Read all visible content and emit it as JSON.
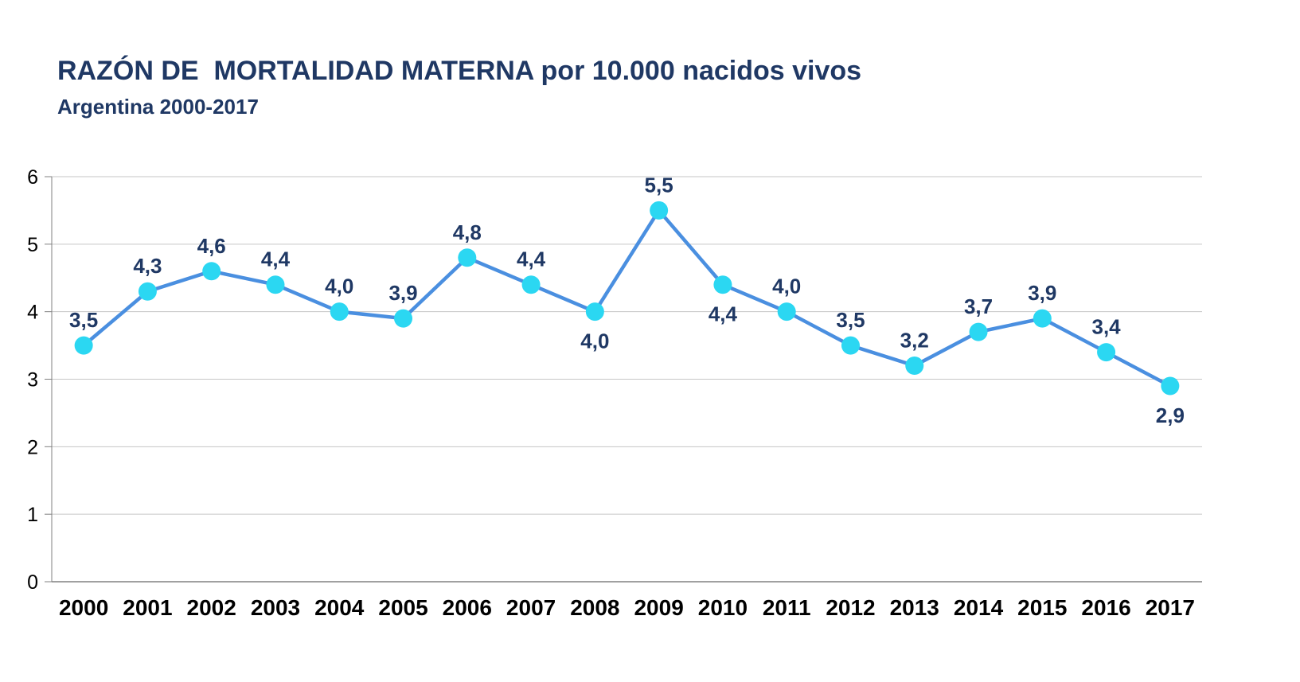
{
  "header": {
    "title": "RAZÓN DE  MORTALIDAD MATERNA por 10.000 nacidos vivos",
    "subtitle": "Argentina 2000-2017"
  },
  "chart_data": {
    "type": "line",
    "title": "RAZÓN DE  MORTALIDAD MATERNA por 10.000 nacidos vivos",
    "subtitle": "Argentina 2000-2017",
    "categories": [
      "2000",
      "2001",
      "2002",
      "2003",
      "2004",
      "2005",
      "2006",
      "2007",
      "2008",
      "2009",
      "2010",
      "2011",
      "2012",
      "2013",
      "2014",
      "2015",
      "2016",
      "2017"
    ],
    "series": [
      {
        "name": "Razón de mortalidad materna por 10.000 nacidos vivos",
        "values": [
          3.5,
          4.3,
          4.6,
          4.4,
          4.0,
          3.9,
          4.8,
          4.4,
          4.0,
          5.5,
          4.4,
          4.0,
          3.5,
          3.2,
          3.7,
          3.9,
          3.4,
          2.9
        ]
      }
    ],
    "value_labels": [
      "3,5",
      "4,3",
      "4,6",
      "4,4",
      "4,0",
      "3,9",
      "4,8",
      "4,4",
      "4,0",
      "5,5",
      "4,4",
      "4,0",
      "3,5",
      "3,2",
      "3,7",
      "3,9",
      "3,4",
      "2,9"
    ],
    "label_positions": [
      "above",
      "above",
      "above",
      "above",
      "above",
      "above",
      "above",
      "above",
      "below",
      "above",
      "below",
      "above",
      "above",
      "above",
      "above",
      "above",
      "above",
      "below"
    ],
    "xlabel": "",
    "ylabel": "",
    "ylim": [
      0,
      6
    ],
    "yticks": [
      "0",
      "1",
      "2",
      "3",
      "4",
      "5",
      "6"
    ],
    "grid": true,
    "legend": "none",
    "colors": {
      "line": "#4A8FE0",
      "marker": "#2BD7F2",
      "value_label": "#1F3864",
      "title": "#1F3864",
      "gridline": "#C6C6C6",
      "axis": "#808080",
      "tick_label": "#000000",
      "x_tick_label": "#000000"
    }
  }
}
